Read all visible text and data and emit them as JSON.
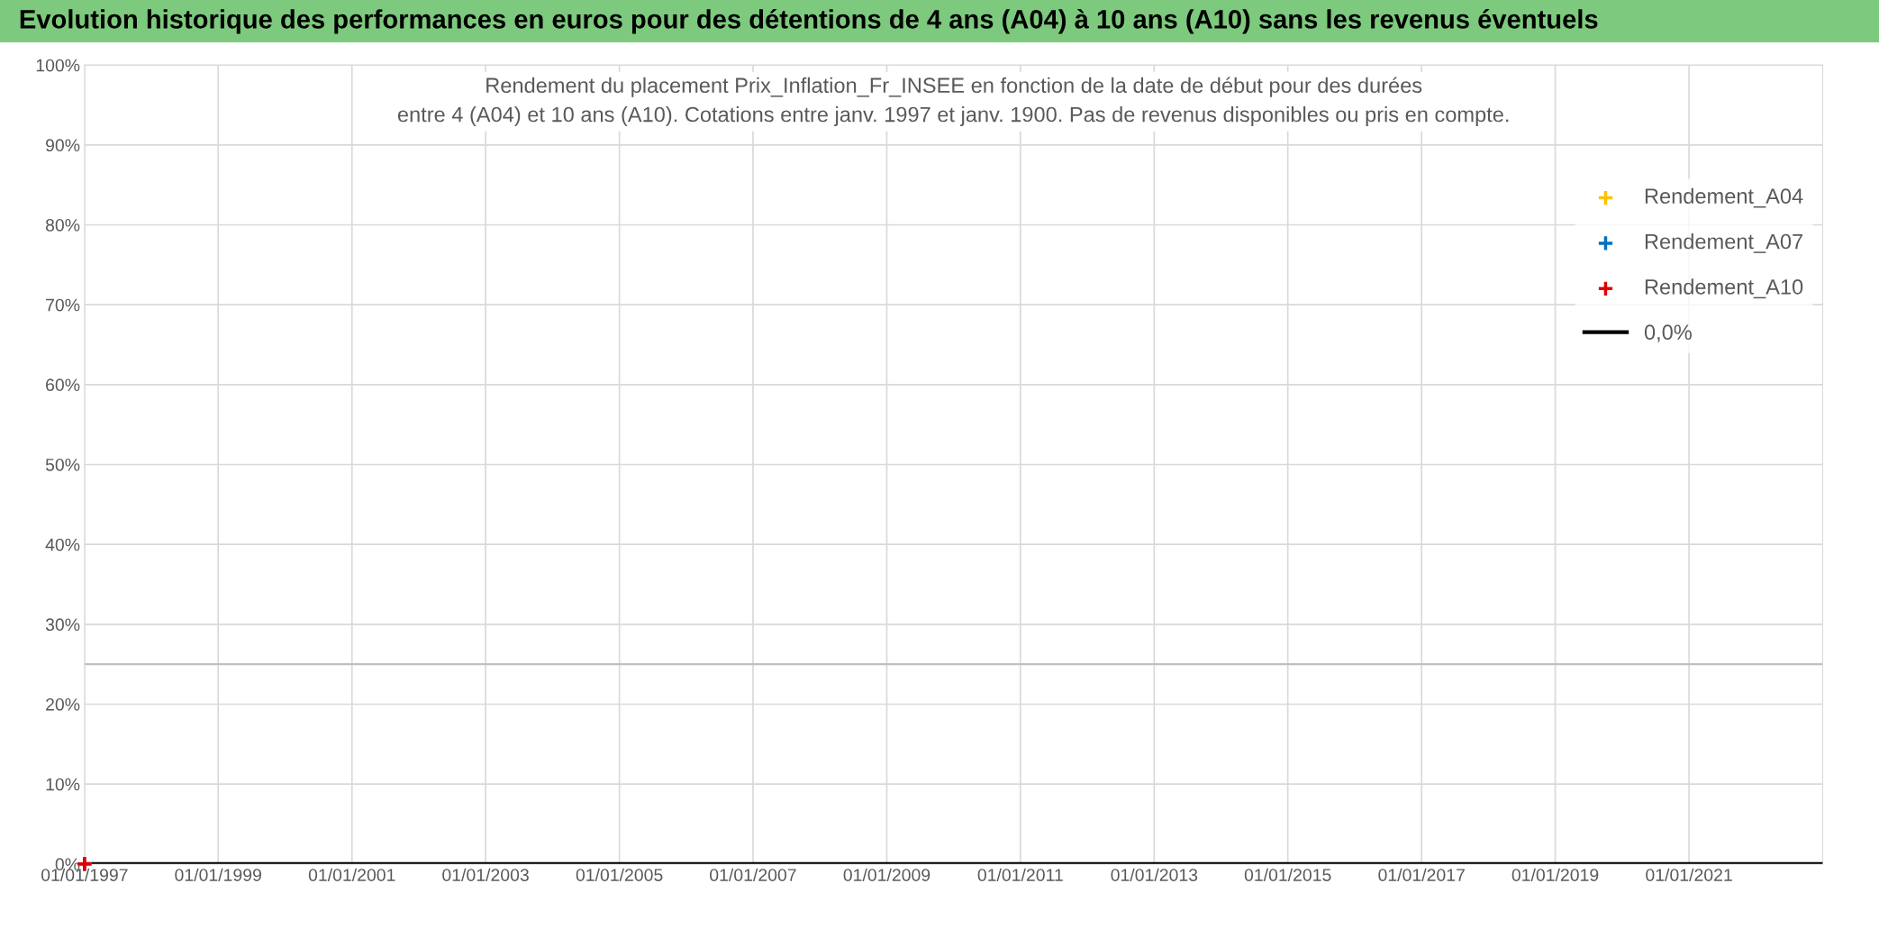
{
  "chart_data": {
    "type": "scatter",
    "title": "Evolution historique des performances en euros pour des détentions de 4 ans (A04) à 10 ans (A10) sans les revenus éventuels",
    "subtitle": "Rendement du placement Prix_Inflation_Fr_INSEE en fonction de la date de début pour des durées\nentre 4 (A04) et 10 ans (A10). Cotations entre janv. 1997 et janv. 1900. Pas de revenus disponibles ou pris en compte.",
    "series": [
      {
        "name": "Rendement_A04",
        "color": "#ffc000",
        "x": [
          "1997-01-01"
        ],
        "values": [
          0
        ]
      },
      {
        "name": "Rendement_A07",
        "color": "#0070c0",
        "x": [
          "1997-01-01"
        ],
        "values": [
          0
        ]
      },
      {
        "name": "Rendement_A10",
        "color": "#e00000",
        "x": [
          "1997-01-01"
        ],
        "values": [
          0
        ]
      },
      {
        "name": "0,0%",
        "color": "#000000",
        "type": "line",
        "marker": "none",
        "x": [
          "1997-01-01",
          "2023-01-01"
        ],
        "values": [
          0,
          0
        ]
      }
    ],
    "ref_lines": [
      {
        "axis": "y",
        "value": 25,
        "label": null,
        "color": "#bfbfbf"
      }
    ],
    "marker": "cross",
    "xlim": [
      "1997-01-01",
      "2023-01-01"
    ],
    "xticks": [
      {
        "value": "1997-01-01",
        "label": "01/01/1997"
      },
      {
        "value": "1999-01-01",
        "label": "01/01/1999"
      },
      {
        "value": "2001-01-01",
        "label": "01/01/2001"
      },
      {
        "value": "2003-01-01",
        "label": "01/01/2003"
      },
      {
        "value": "2005-01-01",
        "label": "01/01/2005"
      },
      {
        "value": "2007-01-01",
        "label": "01/01/2007"
      },
      {
        "value": "2009-01-01",
        "label": "01/01/2009"
      },
      {
        "value": "2011-01-01",
        "label": "01/01/2011"
      },
      {
        "value": "2013-01-01",
        "label": "01/01/2013"
      },
      {
        "value": "2015-01-01",
        "label": "01/01/2015"
      },
      {
        "value": "2017-01-01",
        "label": "01/01/2017"
      },
      {
        "value": "2019-01-01",
        "label": "01/01/2019"
      },
      {
        "value": "2021-01-01",
        "label": "01/01/2021"
      }
    ],
    "ylim": [
      0,
      100
    ],
    "yticks": [
      {
        "value": 0,
        "label": "0%"
      },
      {
        "value": 10,
        "label": "10%"
      },
      {
        "value": 20,
        "label": "20%"
      },
      {
        "value": 30,
        "label": "30%"
      },
      {
        "value": 40,
        "label": "40%"
      },
      {
        "value": 50,
        "label": "50%"
      },
      {
        "value": 60,
        "label": "60%"
      },
      {
        "value": 70,
        "label": "70%"
      },
      {
        "value": 80,
        "label": "80%"
      },
      {
        "value": 90,
        "label": "90%"
      },
      {
        "value": 100,
        "label": "100%"
      }
    ],
    "grid": true,
    "legend": "top right"
  }
}
